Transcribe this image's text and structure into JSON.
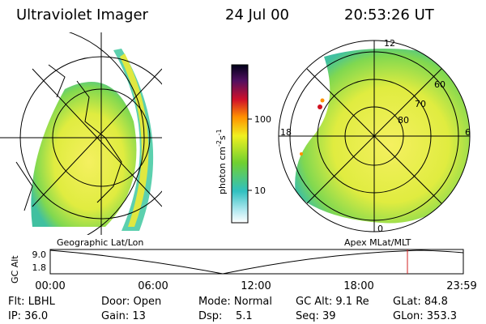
{
  "header": {
    "title": "Ultraviolet Imager",
    "date": "24 Jul 00",
    "time": "20:53:26 UT"
  },
  "colorbar": {
    "label": "photon cm",
    "exp1": "-2",
    "unit2": "s",
    "exp2": "-1",
    "ticks": [
      "100",
      "10"
    ]
  },
  "geographic_map": {
    "caption": "Geographic Lat/Lon"
  },
  "polar_map": {
    "caption": "Apex MLat/MLT",
    "mlt_labels": [
      "12",
      "18",
      "6",
      "0"
    ],
    "mlat_labels": [
      "60",
      "70",
      "80"
    ]
  },
  "timeline": {
    "ylabel": "GC Alt",
    "yticks": [
      "9.0",
      "1.8"
    ],
    "xticks": [
      "00:00",
      "06:00",
      "12:00",
      "18:00",
      "23:59"
    ]
  },
  "status": {
    "rows": [
      [
        "Flt: LBHL",
        "Door: Open",
        "Mode: Normal",
        "GC Alt: 9.1 Re",
        "GLat: 84.8"
      ],
      [
        "IP: 36.0",
        "Gain: 13",
        "Dsp:    5.1",
        "Seq: 39",
        "GLon: 353.3"
      ]
    ]
  }
}
